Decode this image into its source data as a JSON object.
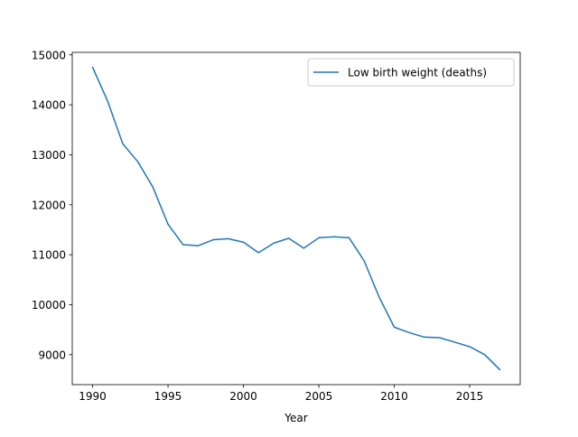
{
  "chart_data": {
    "type": "line",
    "title": "",
    "xlabel": "Year",
    "ylabel": "",
    "xlim": [
      1988.65,
      2018.35
    ],
    "ylim": [
      8400,
      15050
    ],
    "xticks": [
      1990,
      1995,
      2000,
      2005,
      2010,
      2015
    ],
    "yticks": [
      9000,
      10000,
      11000,
      12000,
      13000,
      14000,
      15000
    ],
    "grid": false,
    "legend_position": "top-right",
    "series": [
      {
        "name": "Low birth weight (deaths)",
        "color": "#1f77b4",
        "x": [
          1990,
          1991,
          1992,
          1993,
          1994,
          1995,
          1996,
          1997,
          1998,
          1999,
          2000,
          2001,
          2002,
          2003,
          2004,
          2005,
          2006,
          2007,
          2008,
          2009,
          2010,
          2011,
          2012,
          2013,
          2014,
          2015,
          2016,
          2017
        ],
        "y": [
          14750,
          14070,
          13220,
          12860,
          12350,
          11610,
          11200,
          11180,
          11300,
          11320,
          11250,
          11040,
          11230,
          11330,
          11130,
          11340,
          11360,
          11340,
          10880,
          10150,
          9550,
          9440,
          9350,
          9340,
          9250,
          9160,
          9000,
          8700
        ]
      }
    ]
  }
}
